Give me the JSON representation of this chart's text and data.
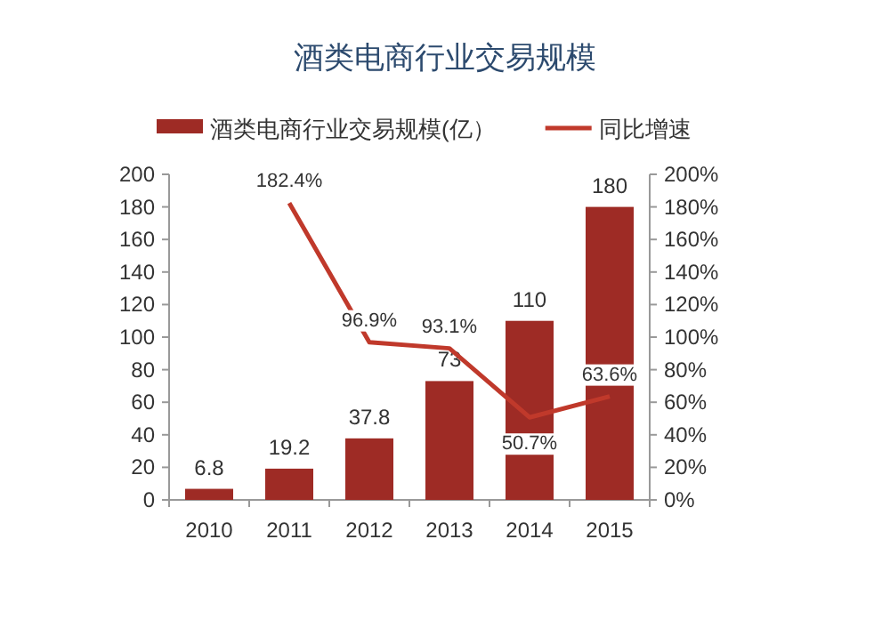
{
  "chart_data": {
    "type": "bar",
    "title": "酒类电商行业交易规模",
    "categories": [
      "2010",
      "2011",
      "2012",
      "2013",
      "2014",
      "2015"
    ],
    "series": [
      {
        "name": "酒类电商行业交易规模(亿）",
        "color": "#9e2b25",
        "values": [
          6.8,
          19.2,
          37.8,
          73,
          110,
          180
        ],
        "value_labels": [
          "6.8",
          "19.2",
          "37.8",
          "73",
          "110",
          "180"
        ]
      },
      {
        "name": "同比增速",
        "type": "line",
        "axis": "y2",
        "color": "#c0392b",
        "values": [
          null,
          182.4,
          96.9,
          93.1,
          50.7,
          63.6
        ],
        "value_labels": [
          null,
          "182.4%",
          "96.9%",
          "93.1%",
          "50.7%",
          "63.6%"
        ]
      }
    ],
    "ylim": [
      0,
      200
    ],
    "yticks": [
      0,
      20,
      40,
      60,
      80,
      100,
      120,
      140,
      160,
      180,
      200
    ],
    "y2lim": [
      0,
      200
    ],
    "y2ticks": [
      {
        "value": 0,
        "label": "0%"
      },
      {
        "value": 20,
        "label": "20%"
      },
      {
        "value": 40,
        "label": "40%"
      },
      {
        "value": 60,
        "label": "60%"
      },
      {
        "value": 80,
        "label": "80%"
      },
      {
        "value": 100,
        "label": "100%"
      },
      {
        "value": 120,
        "label": "120%"
      },
      {
        "value": 140,
        "label": "140%"
      },
      {
        "value": 160,
        "label": "160%"
      },
      {
        "value": 180,
        "label": "180%"
      },
      {
        "value": 200,
        "label": "200%"
      }
    ],
    "legend": "top",
    "grid": false
  }
}
